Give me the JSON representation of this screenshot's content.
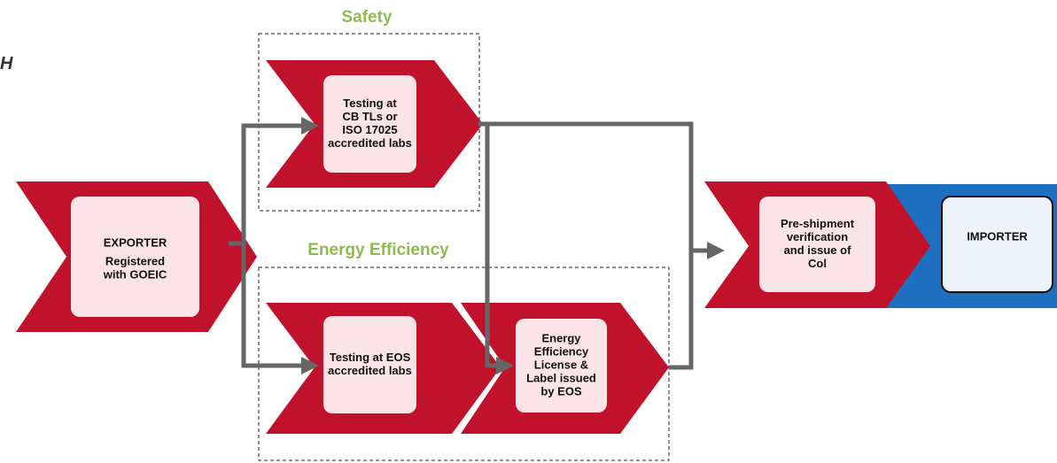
{
  "header": {
    "fragment": "H"
  },
  "groups": [
    {
      "label": "Safety"
    },
    {
      "label": "Energy Efficiency"
    }
  ],
  "nodes": [
    {
      "lines": [
        "EXPORTER",
        "Registered",
        "with GOEIC"
      ]
    },
    {
      "lines": [
        "Testing at",
        "CB TLs or",
        "ISO 17025",
        "accredited labs"
      ]
    },
    {
      "lines": [
        "Testing at EOS",
        "accredited labs"
      ]
    },
    {
      "lines": [
        "Energy",
        "Efficiency",
        "License &",
        "Label issued",
        "by EOS"
      ]
    },
    {
      "lines": [
        "Pre-shipment",
        "verification",
        "and issue of",
        "Col"
      ]
    },
    {
      "lines": [
        "IMPORTER"
      ]
    }
  ]
}
